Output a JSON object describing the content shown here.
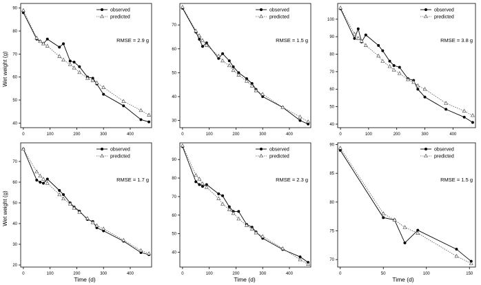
{
  "figure": {
    "ylabel": "Wet weight (g)",
    "xlabel": "Time (d)",
    "legend_observed": "observed",
    "legend_predicted": "predicted"
  },
  "chart_data": [
    {
      "type": "line",
      "xlim": [
        -10,
        480
      ],
      "ylim": [
        38,
        92
      ],
      "xticks": [
        0,
        100,
        200,
        300,
        400
      ],
      "yticks": [
        40,
        50,
        60,
        70,
        80,
        90
      ],
      "annotation": "RMSE = 2.9 g",
      "legend": "top-right",
      "series": [
        {
          "name": "observed",
          "marker": "filled-circle",
          "line": "solid",
          "x": [
            0,
            50,
            63,
            75,
            90,
            135,
            150,
            175,
            190,
            210,
            240,
            260,
            275,
            300,
            375,
            440,
            470
          ],
          "y": [
            88,
            76.5,
            75.5,
            74.5,
            76.5,
            73,
            74.5,
            67,
            66.5,
            64.5,
            60,
            59.5,
            57,
            52.5,
            47.5,
            41.5,
            40.5
          ]
        },
        {
          "name": "predicted",
          "marker": "open-triangle",
          "line": "dotted",
          "x": [
            0,
            50,
            63,
            75,
            90,
            135,
            150,
            175,
            190,
            210,
            240,
            260,
            275,
            300,
            375,
            440,
            470
          ],
          "y": [
            89,
            77,
            75.5,
            74.5,
            73.5,
            69,
            67.5,
            65.5,
            64,
            62,
            59.5,
            58.5,
            57.5,
            55.5,
            49.5,
            45.5,
            43.5
          ]
        }
      ]
    },
    {
      "type": "line",
      "xlim": [
        -10,
        480
      ],
      "ylim": [
        27,
        79
      ],
      "xticks": [
        0,
        100,
        200,
        300,
        400
      ],
      "yticks": [
        30,
        40,
        50,
        60,
        70
      ],
      "annotation": "RMSE = 1.5 g",
      "legend": "top-right",
      "series": [
        {
          "name": "observed",
          "marker": "filled-circle",
          "line": "solid",
          "x": [
            0,
            50,
            63,
            75,
            90,
            135,
            150,
            175,
            190,
            210,
            240,
            260,
            275,
            300,
            375,
            440,
            470
          ],
          "y": [
            77,
            67,
            64,
            61,
            62.5,
            56,
            58,
            55,
            52.5,
            50,
            47.5,
            45.5,
            43,
            40,
            35.5,
            30,
            28.5
          ]
        },
        {
          "name": "predicted",
          "marker": "open-triangle",
          "line": "dotted",
          "x": [
            0,
            50,
            63,
            75,
            90,
            135,
            150,
            175,
            190,
            210,
            240,
            260,
            275,
            300,
            375,
            440,
            470
          ],
          "y": [
            77.5,
            67.5,
            65.5,
            63.5,
            61.5,
            57,
            55,
            53,
            51,
            49,
            46.5,
            44.5,
            42.5,
            41,
            35.5,
            31.5,
            29.5
          ]
        }
      ]
    },
    {
      "type": "line",
      "xlim": [
        -10,
        480
      ],
      "ylim": [
        38,
        109
      ],
      "xticks": [
        0,
        100,
        200,
        300,
        400
      ],
      "yticks": [
        40,
        50,
        60,
        70,
        80,
        90,
        100
      ],
      "annotation": "RMSE = 3.8 g",
      "legend": "top-right",
      "series": [
        {
          "name": "observed",
          "marker": "filled-circle",
          "line": "solid",
          "x": [
            0,
            50,
            63,
            75,
            90,
            135,
            150,
            175,
            190,
            210,
            240,
            260,
            275,
            300,
            375,
            440,
            470
          ],
          "y": [
            106,
            89,
            94.5,
            87,
            91,
            85,
            82,
            76,
            73.5,
            72.5,
            66,
            65,
            60,
            55.5,
            48.5,
            44,
            41
          ]
        },
        {
          "name": "predicted",
          "marker": "open-triangle",
          "line": "dotted",
          "x": [
            0,
            50,
            63,
            75,
            90,
            135,
            150,
            175,
            190,
            210,
            240,
            260,
            275,
            300,
            375,
            440,
            470
          ],
          "y": [
            106.5,
            91.5,
            89,
            87.5,
            85,
            79,
            76,
            73,
            71,
            69,
            65.5,
            64,
            62,
            60,
            52,
            47.5,
            45
          ]
        }
      ]
    },
    {
      "type": "line",
      "xlim": [
        -10,
        480
      ],
      "ylim": [
        19,
        79
      ],
      "xticks": [
        0,
        100,
        200,
        300,
        400
      ],
      "yticks": [
        20,
        30,
        40,
        50,
        60,
        70
      ],
      "annotation": "RMSE = 1.7 g",
      "legend": "top-right",
      "series": [
        {
          "name": "observed",
          "marker": "filled-circle",
          "line": "solid",
          "x": [
            0,
            50,
            63,
            75,
            90,
            135,
            150,
            175,
            190,
            210,
            240,
            260,
            275,
            300,
            375,
            440,
            470
          ],
          "y": [
            76,
            61,
            60,
            59.5,
            61.5,
            56,
            54,
            50,
            48,
            46,
            42,
            41,
            38,
            36.5,
            31.5,
            26,
            25
          ]
        },
        {
          "name": "predicted",
          "marker": "open-triangle",
          "line": "dotted",
          "x": [
            0,
            50,
            63,
            75,
            90,
            135,
            150,
            175,
            190,
            210,
            240,
            260,
            275,
            300,
            375,
            440,
            470
          ],
          "y": [
            76,
            65,
            63,
            61.5,
            59.5,
            54,
            52,
            49.5,
            47.5,
            45.5,
            42.5,
            40.5,
            39,
            37.5,
            32,
            27,
            25.5
          ]
        }
      ]
    },
    {
      "type": "line",
      "xlim": [
        -10,
        480
      ],
      "ylim": [
        32,
        99
      ],
      "xticks": [
        0,
        100,
        200,
        300,
        400
      ],
      "yticks": [
        40,
        50,
        60,
        70,
        80,
        90
      ],
      "annotation": "RMSE = 2.3 g",
      "legend": "top-right",
      "series": [
        {
          "name": "observed",
          "marker": "filled-circle",
          "line": "solid",
          "x": [
            0,
            50,
            63,
            75,
            90,
            135,
            150,
            175,
            190,
            210,
            240,
            260,
            275,
            300,
            375,
            440,
            470
          ],
          "y": [
            97,
            78,
            76.5,
            75.5,
            76.5,
            71.5,
            70.5,
            64.5,
            62,
            62,
            55,
            53.5,
            51,
            47.5,
            41.5,
            37.5,
            34.5
          ]
        },
        {
          "name": "predicted",
          "marker": "open-triangle",
          "line": "dotted",
          "x": [
            0,
            50,
            63,
            75,
            90,
            135,
            150,
            175,
            190,
            210,
            240,
            260,
            275,
            300,
            375,
            440,
            470
          ],
          "y": [
            97.5,
            81.5,
            79.5,
            77,
            75,
            69,
            66,
            63,
            61,
            58,
            54.5,
            52.5,
            50.5,
            48.5,
            42,
            36,
            33.5
          ]
        }
      ]
    },
    {
      "type": "line",
      "xlim": [
        -3,
        157
      ],
      "ylim": [
        68.7,
        90.3
      ],
      "xticks": [
        0,
        50,
        100,
        150
      ],
      "yticks": [
        70,
        75,
        80,
        85,
        90
      ],
      "annotation": "RMSE = 1.5 g",
      "legend": "top-right",
      "series": [
        {
          "name": "observed",
          "marker": "filled-circle",
          "line": "solid",
          "x": [
            0,
            50,
            63,
            75,
            90,
            135,
            152
          ],
          "y": [
            89,
            77.3,
            76.9,
            72.9,
            75.1,
            71.8,
            69.7
          ]
        },
        {
          "name": "predicted",
          "marker": "open-triangle",
          "line": "dotted",
          "x": [
            0,
            50,
            63,
            75,
            90,
            135,
            152
          ],
          "y": [
            89.4,
            78,
            76.9,
            75.6,
            74.6,
            70.6,
            69.3
          ]
        }
      ]
    }
  ]
}
